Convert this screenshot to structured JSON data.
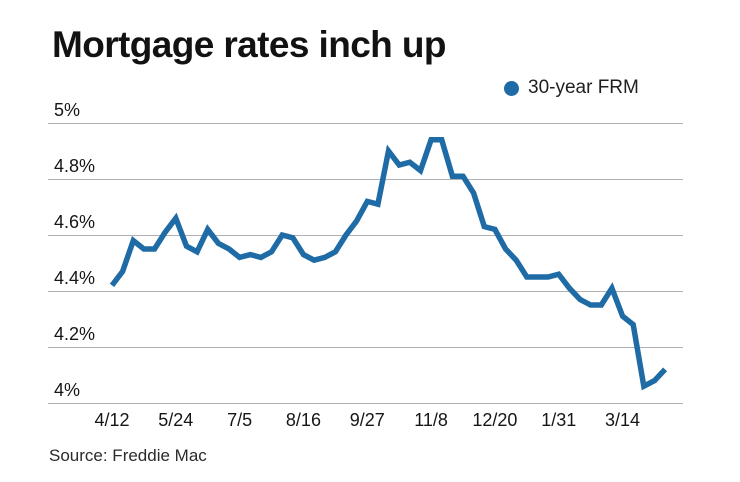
{
  "title": "Mortgage rates inch up",
  "legend": {
    "label": "30-year FRM",
    "marker": "filled-circle",
    "marker_color": "#1f6ba6",
    "position": "top-right"
  },
  "source": "Source: Freddie Mac",
  "colors": {
    "line": "#1f6ba6",
    "grid": "#b1b1b3",
    "text": "#161616",
    "background": "#ffffff"
  },
  "chart_data": {
    "type": "line",
    "title": "Mortgage rates inch up",
    "xlabel": "",
    "ylabel": "",
    "ylim": [
      4.0,
      5.0
    ],
    "y_tick_step": 0.2,
    "y_ticks": [
      {
        "value": 5.0,
        "label": "5%"
      },
      {
        "value": 4.8,
        "label": "4.8%"
      },
      {
        "value": 4.6,
        "label": "4.6%"
      },
      {
        "value": 4.4,
        "label": "4.4%"
      },
      {
        "value": 4.2,
        "label": "4.2%"
      },
      {
        "value": 4.0,
        "label": "4%"
      }
    ],
    "grid": "horizontal-only",
    "legend_position": "top-right",
    "x_frequency": "weekly",
    "x_tick_every": 6,
    "x_tick_labels": [
      "4/12",
      "5/24",
      "7/5",
      "8/16",
      "9/27",
      "11/8",
      "12/20",
      "1/31",
      "3/14"
    ],
    "series": [
      {
        "name": "30-year FRM",
        "color": "#1f6ba6",
        "values": [
          4.42,
          4.47,
          4.58,
          4.55,
          4.55,
          4.61,
          4.66,
          4.56,
          4.54,
          4.62,
          4.57,
          4.55,
          4.52,
          4.53,
          4.52,
          4.54,
          4.6,
          4.59,
          4.53,
          4.51,
          4.52,
          4.54,
          4.6,
          4.65,
          4.72,
          4.71,
          4.9,
          4.85,
          4.86,
          4.83,
          4.94,
          4.94,
          4.81,
          4.81,
          4.75,
          4.63,
          4.62,
          4.55,
          4.51,
          4.45,
          4.45,
          4.45,
          4.46,
          4.41,
          4.37,
          4.35,
          4.35,
          4.41,
          4.31,
          4.28,
          4.06,
          4.08,
          4.12
        ]
      }
    ]
  }
}
